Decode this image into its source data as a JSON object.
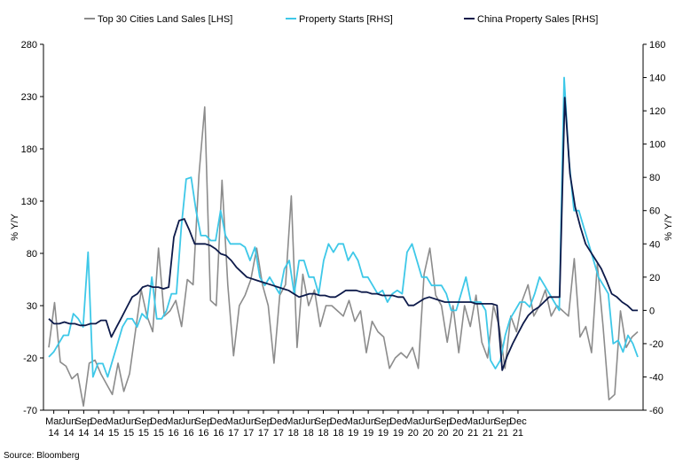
{
  "source": "Source: Bloomberg",
  "chart_data": {
    "type": "line",
    "title": "",
    "ylabel_left": "% Y/Y",
    "ylabel_right": "% Y/Y",
    "ylim_left": [
      -70,
      280
    ],
    "ylim_right": [
      -60,
      160
    ],
    "yticks_left": [
      280,
      230,
      180,
      130,
      80,
      30,
      -20,
      -70
    ],
    "yticks_right": [
      160,
      140,
      120,
      100,
      80,
      60,
      40,
      20,
      0,
      -20,
      -40,
      -60
    ],
    "grid": false,
    "legend_position": "top",
    "x_tick_labels": [
      {
        "month": "Mar",
        "year": "14"
      },
      {
        "month": "Jun",
        "year": "14"
      },
      {
        "month": "Sep",
        "year": "14"
      },
      {
        "month": "Dec",
        "year": "14"
      },
      {
        "month": "Mar",
        "year": "15"
      },
      {
        "month": "Jun",
        "year": "15"
      },
      {
        "month": "Sep",
        "year": "15"
      },
      {
        "month": "Dec",
        "year": "15"
      },
      {
        "month": "Mar",
        "year": "16"
      },
      {
        "month": "Jun",
        "year": "16"
      },
      {
        "month": "Sep",
        "year": "16"
      },
      {
        "month": "Dec",
        "year": "16"
      },
      {
        "month": "Mar",
        "year": "17"
      },
      {
        "month": "Jun",
        "year": "17"
      },
      {
        "month": "Sep",
        "year": "17"
      },
      {
        "month": "Dec",
        "year": "17"
      },
      {
        "month": "Mar",
        "year": "18"
      },
      {
        "month": "Jun",
        "year": "18"
      },
      {
        "month": "Sep",
        "year": "18"
      },
      {
        "month": "Dec",
        "year": "18"
      },
      {
        "month": "Mar",
        "year": "19"
      },
      {
        "month": "Jun",
        "year": "19"
      },
      {
        "month": "Sep",
        "year": "19"
      },
      {
        "month": "Dec",
        "year": "19"
      },
      {
        "month": "Mar",
        "year": "20"
      },
      {
        "month": "Jun",
        "year": "20"
      },
      {
        "month": "Sep",
        "year": "20"
      },
      {
        "month": "Dec",
        "year": "20"
      },
      {
        "month": "Mar",
        "year": "21"
      },
      {
        "month": "Jun",
        "year": "21"
      },
      {
        "month": "Sep",
        "year": "21"
      },
      {
        "month": "Dec",
        "year": "21"
      }
    ],
    "x_start": "2014-02",
    "x_end": "2021-12",
    "series": [
      {
        "name": "Top 30 Cities Land Sales [LHS]",
        "axis": "left",
        "color": "#8c8c8c",
        "values": [
          -10,
          33,
          -24,
          -28,
          -40,
          -35,
          -66,
          -25,
          -22,
          -35,
          -45,
          -55,
          -25,
          -52,
          -35,
          5,
          45,
          20,
          5,
          85,
          20,
          25,
          35,
          10,
          55,
          50,
          155,
          220,
          35,
          30,
          150,
          50,
          -18,
          30,
          40,
          55,
          85,
          50,
          30,
          -25,
          40,
          50,
          135,
          -10,
          60,
          30,
          45,
          10,
          30,
          30,
          25,
          20,
          35,
          15,
          25,
          -15,
          15,
          5,
          0,
          -30,
          -20,
          -15,
          -20,
          -10,
          -30,
          60,
          85,
          40,
          30,
          -5,
          30,
          -15,
          30,
          10,
          40,
          -5,
          -20,
          30,
          10,
          -30,
          20,
          5,
          35,
          50,
          20,
          30,
          45,
          20,
          30,
          25,
          20,
          75,
          0,
          10,
          -15,
          70,
          10,
          -60,
          -55,
          25,
          -10,
          0,
          5
        ],
        "x_offset_months": 0
      },
      {
        "name": "Property Starts [RHS]",
        "axis": "right",
        "color": "#3ec8e8",
        "values": [
          -28,
          -25,
          -20,
          -15,
          -15,
          -2,
          -5,
          -10,
          35,
          -40,
          -32,
          -32,
          -40,
          -30,
          -20,
          -10,
          -5,
          -5,
          -10,
          -2,
          -5,
          20,
          -5,
          -5,
          0,
          10,
          10,
          50,
          79,
          80,
          60,
          45,
          45,
          42,
          42,
          60,
          45,
          40,
          40,
          40,
          38,
          30,
          38,
          20,
          15,
          20,
          15,
          10,
          25,
          30,
          10,
          30,
          30,
          20,
          20,
          10,
          30,
          40,
          35,
          40,
          40,
          30,
          35,
          30,
          20,
          20,
          15,
          10,
          12,
          5,
          10,
          12,
          10,
          35,
          40,
          30,
          20,
          20,
          15,
          15,
          15,
          10,
          0,
          0,
          10,
          20,
          5,
          5,
          5,
          0,
          -30,
          -35,
          -30,
          -15,
          -5,
          0,
          5,
          5,
          2,
          10,
          20,
          15,
          10,
          5,
          0,
          140,
          90,
          60,
          60,
          50,
          40,
          30,
          20,
          15,
          10,
          -20,
          -18,
          -25,
          -15,
          -20,
          -28
        ],
        "x_offset_months": 0
      },
      {
        "name": "China Property Sales [RHS]",
        "axis": "right",
        "color": "#0d1a4a",
        "values": [
          -5,
          -8,
          -8,
          -7,
          -8,
          -8,
          -9,
          -9,
          -8,
          -8,
          -6,
          -6,
          -16,
          -10,
          -4,
          2,
          8,
          10,
          14,
          15,
          14,
          14,
          13,
          14,
          44,
          54,
          55,
          48,
          40,
          40,
          40,
          39,
          37,
          34,
          33,
          30,
          26,
          23,
          20,
          19,
          18,
          17,
          16,
          15,
          14,
          13,
          12,
          10,
          8,
          9,
          10,
          10,
          9,
          9,
          8,
          8,
          10,
          12,
          12,
          12,
          11,
          11,
          10,
          10,
          9,
          9,
          9,
          8,
          8,
          3,
          3,
          5,
          7,
          8,
          7,
          6,
          5,
          5,
          5,
          5,
          5,
          5,
          4,
          4,
          4,
          4,
          3,
          -36,
          -27,
          -20,
          -14,
          -8,
          -3,
          0,
          2,
          5,
          8,
          8,
          8,
          128,
          82,
          62,
          50,
          40,
          35,
          30,
          25,
          18,
          10,
          8,
          5,
          3,
          0,
          0
        ],
        "x_offset_months": 0
      }
    ]
  }
}
